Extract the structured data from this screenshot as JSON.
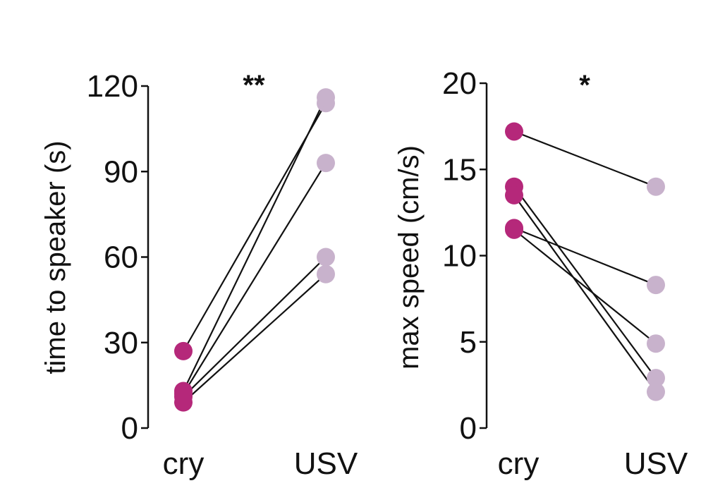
{
  "colors": {
    "cry": "#b5287a",
    "usv": "#c8b2cc",
    "line": "#111111",
    "axis": "#111111"
  },
  "chart_data": [
    {
      "type": "line",
      "ylabel": "time to speaker (s)",
      "significance": "**",
      "categories": [
        "cry",
        "USV"
      ],
      "ylim": [
        0,
        120
      ],
      "yticks": [
        0,
        30,
        60,
        90,
        120
      ],
      "ytick_labels": [
        "0",
        "30",
        "60",
        "90",
        "120"
      ],
      "pairs": [
        {
          "cry": 27,
          "usv": 114
        },
        {
          "cry": 13,
          "usv": 116
        },
        {
          "cry": 12,
          "usv": 93
        },
        {
          "cry": 11,
          "usv": 60
        },
        {
          "cry": 9,
          "usv": 54
        }
      ]
    },
    {
      "type": "line",
      "ylabel": "max speed (cm/s)",
      "significance": "*",
      "categories": [
        "cry",
        "USV"
      ],
      "ylim": [
        0,
        20
      ],
      "yticks": [
        0,
        5,
        10,
        15,
        20
      ],
      "ytick_labels": [
        "0",
        "5",
        "10",
        "15",
        "20"
      ],
      "pairs": [
        {
          "cry": 17.2,
          "usv": 14.0
        },
        {
          "cry": 14.0,
          "usv": 2.9
        },
        {
          "cry": 13.5,
          "usv": 2.1
        },
        {
          "cry": 11.6,
          "usv": 8.3
        },
        {
          "cry": 11.5,
          "usv": 4.9
        }
      ]
    }
  ]
}
